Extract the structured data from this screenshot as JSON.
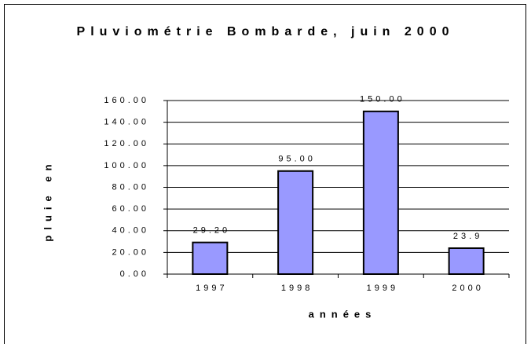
{
  "chart_data": {
    "type": "bar",
    "title": "Pluviométrie Bombarde, juin 2000",
    "x_label": "années",
    "y_label": "pluie en",
    "categories": [
      "1997",
      "1998",
      "1999",
      "2000"
    ],
    "values": [
      29.2,
      95,
      150,
      23.9
    ],
    "value_labels": [
      "29.20",
      "95.00",
      "150.00",
      "23.9"
    ],
    "color": "#9999ff",
    "ylim": [
      0,
      160
    ],
    "yticks": [
      {
        "value": 0,
        "label": "0.00"
      },
      {
        "value": 20,
        "label": "20.00"
      },
      {
        "value": 40,
        "label": "40.00"
      },
      {
        "value": 60,
        "label": "60.00"
      },
      {
        "value": 80,
        "label": "80.00"
      },
      {
        "value": 100,
        "label": "100.00"
      },
      {
        "value": 120,
        "label": "120.00"
      },
      {
        "value": 140,
        "label": "140.00"
      },
      {
        "value": 160,
        "label": "160.00"
      }
    ],
    "grid": true
  }
}
